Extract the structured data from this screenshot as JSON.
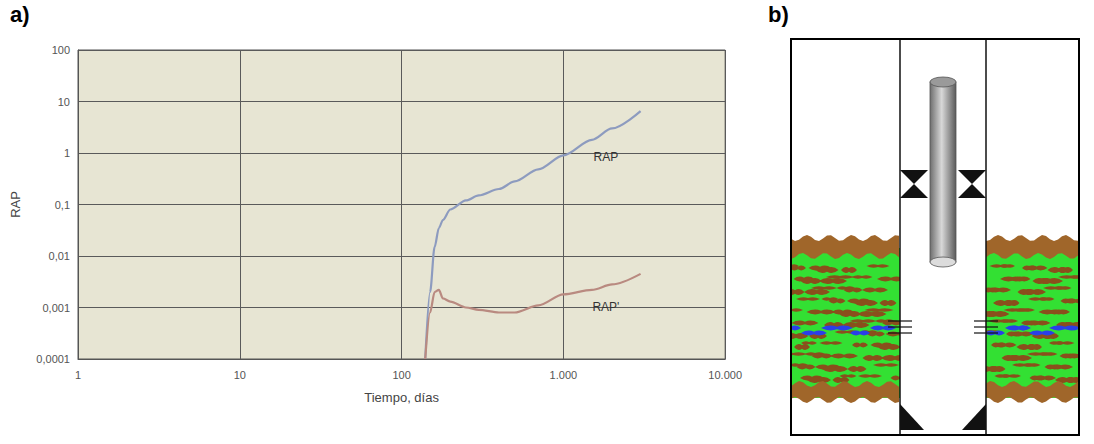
{
  "chart_data": {
    "type": "line",
    "log": true,
    "grid": true,
    "x_label": "Tiempo, días",
    "y_label": "RAP",
    "xlim": [
      1,
      10000
    ],
    "xticks": [
      1,
      10,
      100,
      {
        "value": 1000,
        "label": "1.000"
      },
      {
        "value": 10000,
        "label": "10.000"
      }
    ],
    "ylim": [
      0.0001,
      100
    ],
    "yticks": [
      {
        "value": 0.0001,
        "label": "0,0001"
      },
      {
        "value": 0.001,
        "label": "0,001"
      },
      {
        "value": 0.01,
        "label": "0,01"
      },
      {
        "value": 0.1,
        "label": "0,1"
      },
      1,
      10,
      100
    ],
    "x": [
      140,
      150,
      160,
      170,
      180,
      200,
      250,
      300,
      400,
      500,
      700,
      1000,
      1500,
      2000,
      3000
    ],
    "series": [
      {
        "name": "RAP",
        "color": "#8d9bbf",
        "values": [
          0.0001,
          0.002,
          0.015,
          0.035,
          0.05,
          0.08,
          0.12,
          0.15,
          0.2,
          0.28,
          0.48,
          0.9,
          1.8,
          3,
          6.5
        ]
      },
      {
        "name": "RAP'",
        "color": "#b98a80",
        "values": [
          0.0001,
          0.0008,
          0.002,
          0.0022,
          0.0015,
          0.0013,
          0.001,
          0.0009,
          0.0008,
          0.0008,
          0.0011,
          0.0018,
          0.0022,
          0.0028,
          0.0045
        ]
      }
    ]
  },
  "panels": {
    "a": "a)",
    "b": "b)"
  }
}
